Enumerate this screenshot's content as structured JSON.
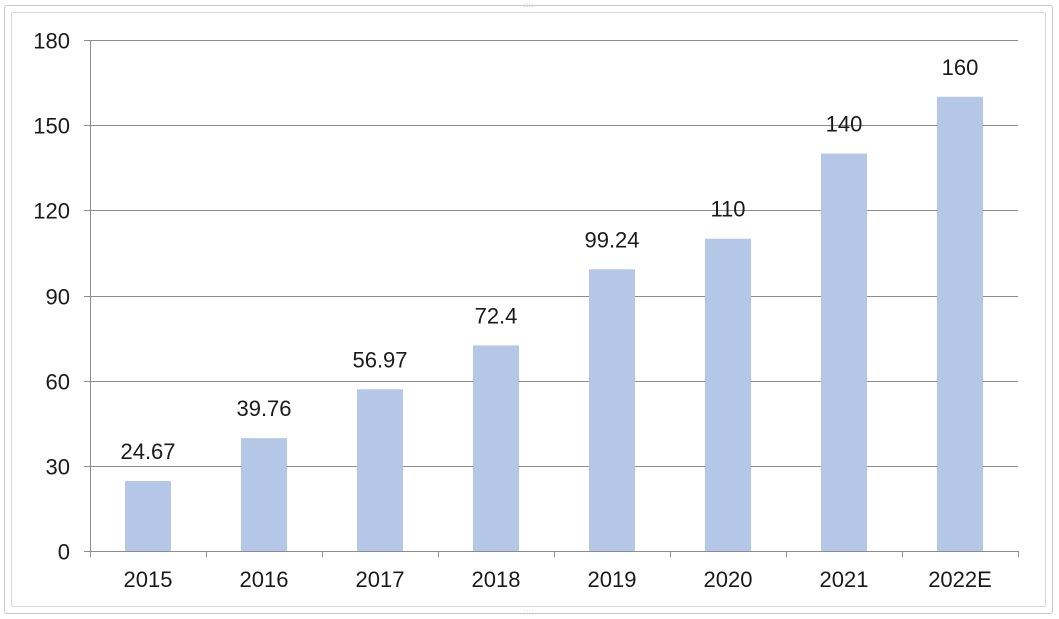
{
  "chart_data": {
    "type": "bar",
    "categories": [
      "2015",
      "2016",
      "2017",
      "2018",
      "2019",
      "2020",
      "2021",
      "2022E"
    ],
    "values": [
      24.67,
      39.76,
      56.97,
      72.4,
      99.24,
      110,
      140,
      160
    ],
    "data_labels": [
      "24.67",
      "39.76",
      "56.97",
      "72.4",
      "99.24",
      "110",
      "140",
      "160"
    ],
    "ylim": [
      0,
      180
    ],
    "yticks": [
      0,
      30,
      60,
      90,
      120,
      150,
      180
    ],
    "ytick_labels": [
      "0",
      "30",
      "60",
      "90",
      "120",
      "150",
      "180"
    ],
    "grid": true,
    "legend": "none",
    "bar_color": "#b4c7e7",
    "grid_color": "#8c8c8c",
    "axis_color": "#8c8c8c",
    "text_color": "#1a1a1a"
  }
}
